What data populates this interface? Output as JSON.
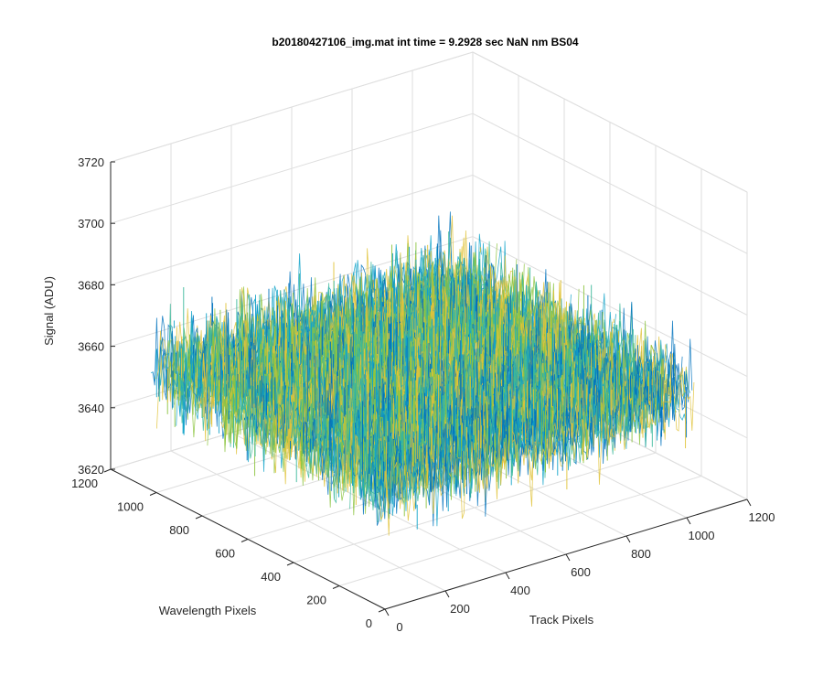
{
  "chart_data": {
    "type": "surface3d",
    "title": "b20180427106_img.mat int time = 9.2928 sec  NaN nm BS04",
    "xlabel": "Track Pixels",
    "ylabel": "Wavelength Pixels",
    "zlabel": "Signal (ADU)",
    "xlim": [
      0,
      1200
    ],
    "ylim": [
      0,
      1200
    ],
    "zlim": [
      3620,
      3720
    ],
    "xticks": [
      "0",
      "200",
      "400",
      "600",
      "800",
      "1000",
      "1200"
    ],
    "yticks": [
      "0",
      "200",
      "400",
      "600",
      "800",
      "1000",
      "1200"
    ],
    "zticks": [
      "3620",
      "3640",
      "3660",
      "3680",
      "3700",
      "3720"
    ],
    "data_extent": {
      "x": [
        0,
        1024
      ],
      "y": [
        0,
        1024
      ]
    },
    "signal_mean": 3660,
    "signal_range": [
      3624,
      3706
    ],
    "grid": true,
    "colors": [
      "#0072bd",
      "#12a3c9",
      "#3cb89a",
      "#8cc43f",
      "#e0c33a"
    ]
  }
}
